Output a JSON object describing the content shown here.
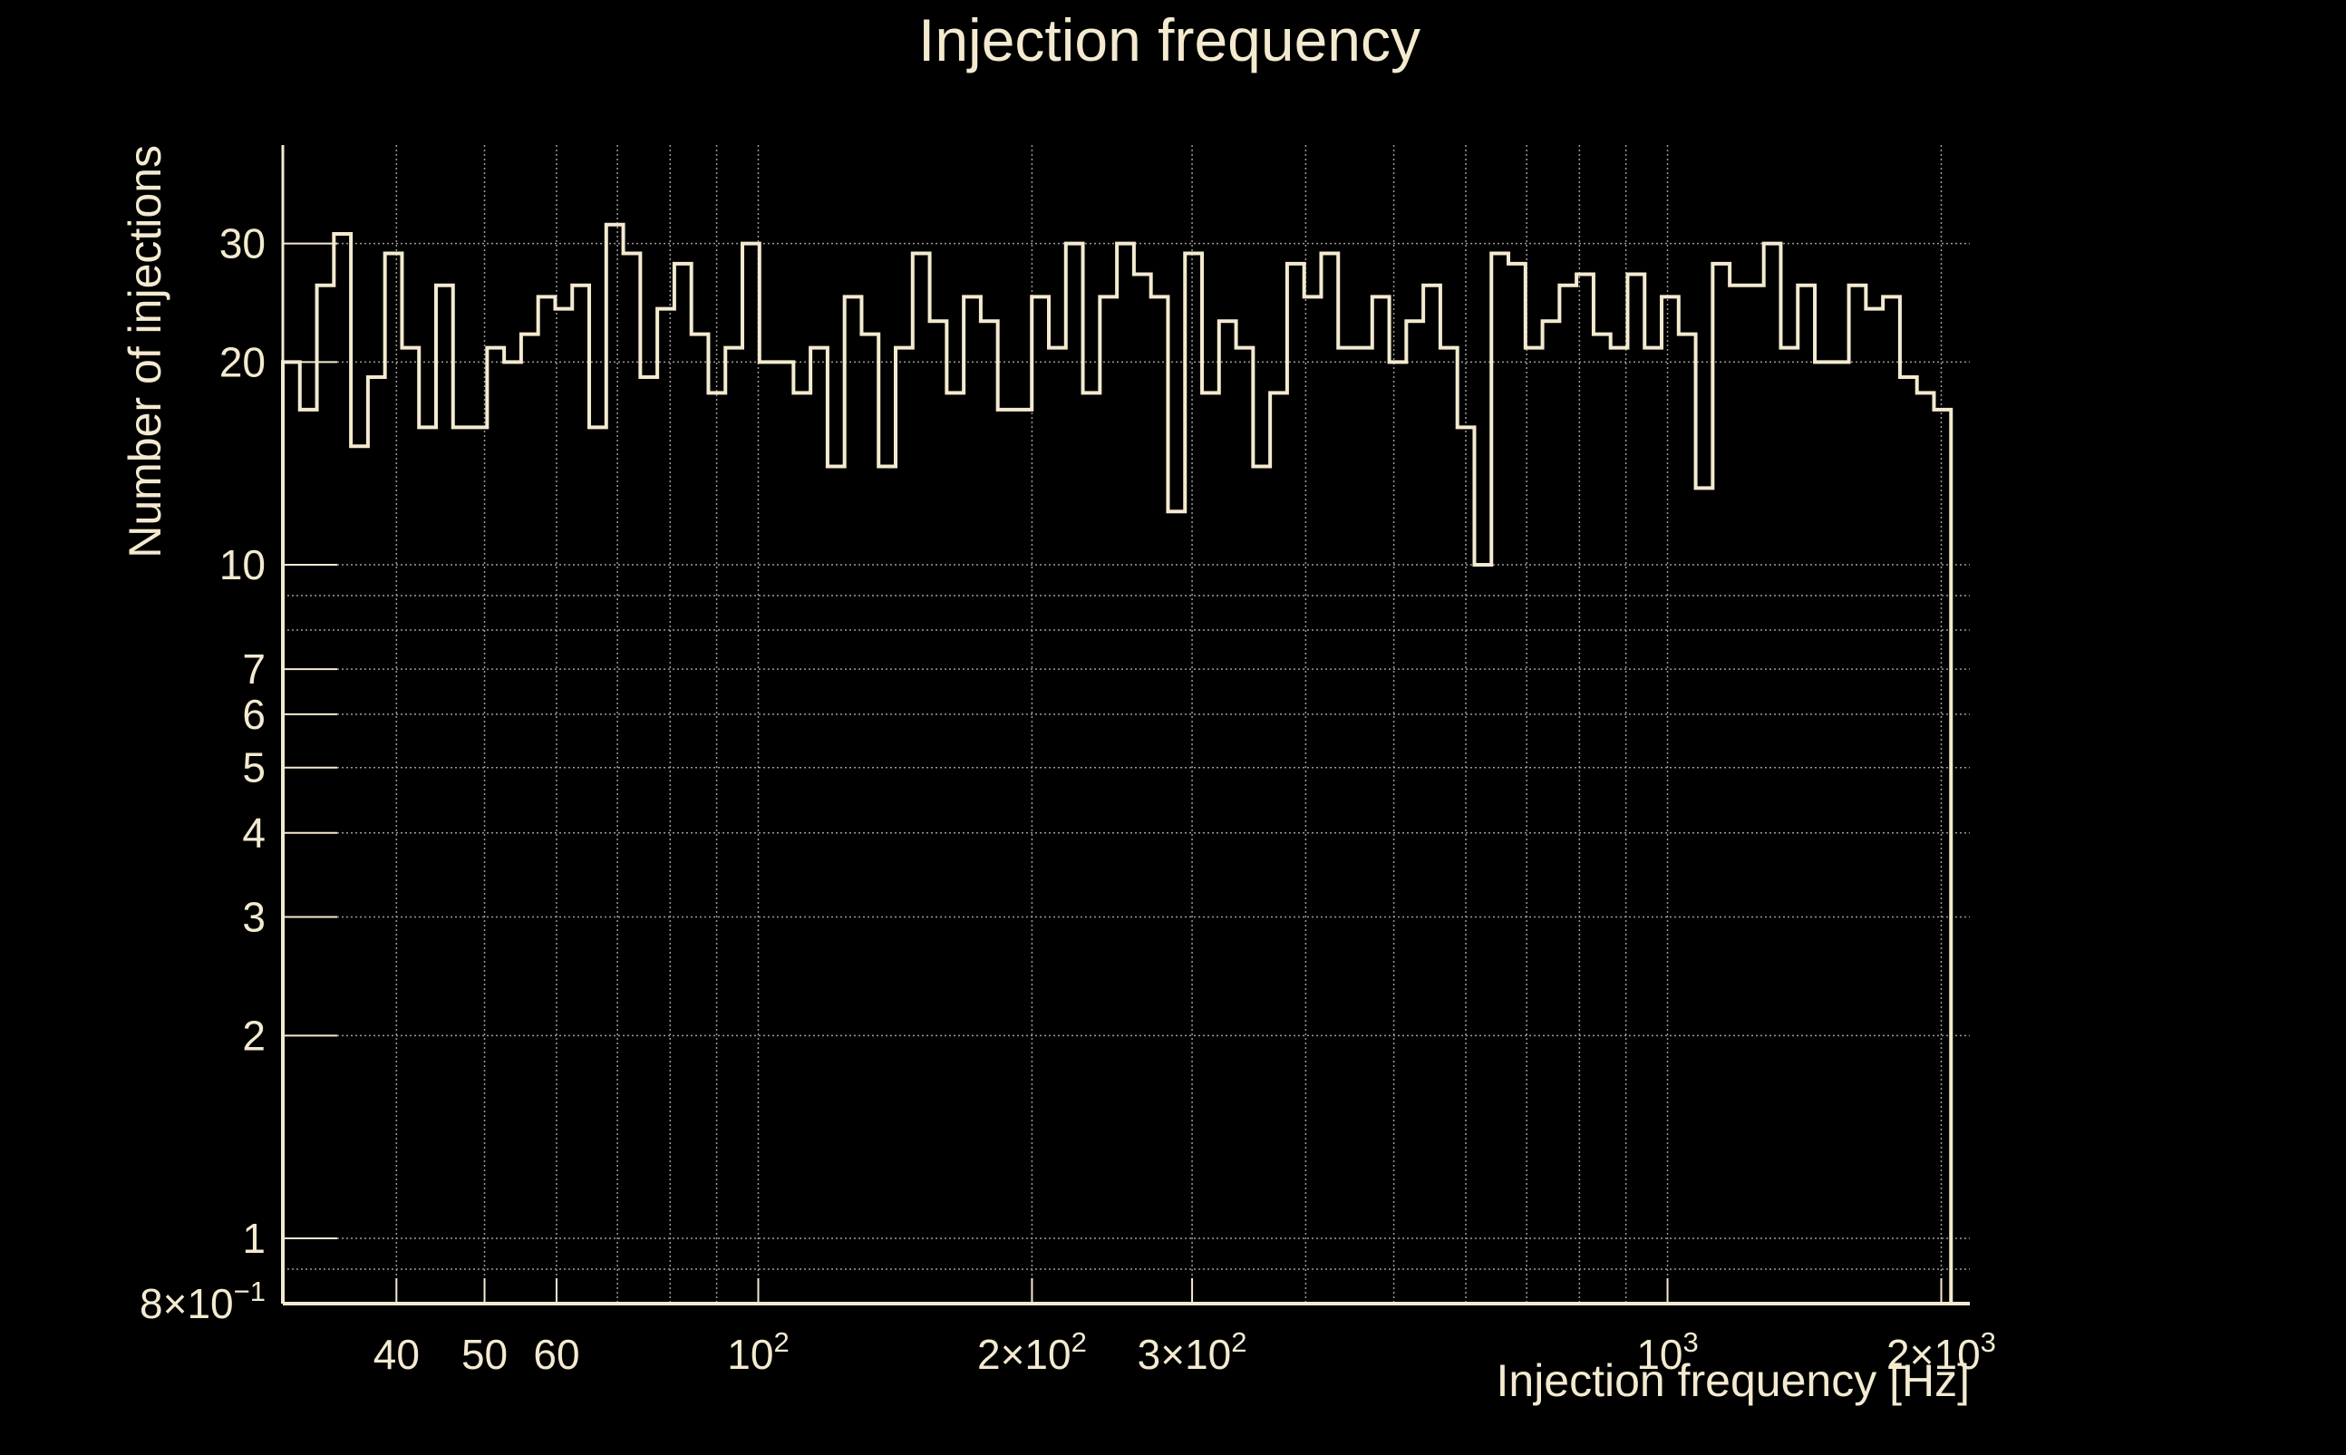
{
  "theme": {
    "background": "#000000",
    "foreground": "#f3ead0",
    "grid": "#9a9a9a"
  },
  "chart_data": {
    "type": "histogram",
    "title": "Injection frequency",
    "xlabel": "Injection frequency [Hz]",
    "ylabel": "Number of injections",
    "xscale": "log",
    "yscale": "log",
    "xlim": [
      30,
      2150
    ],
    "ylim": [
      0.8,
      42
    ],
    "grid": true,
    "legend": "none",
    "x_ticks": [
      {
        "value": 40,
        "base": "40",
        "exp": ""
      },
      {
        "value": 50,
        "base": "50",
        "exp": ""
      },
      {
        "value": 60,
        "base": "60",
        "exp": ""
      },
      {
        "value": 100,
        "base": "10",
        "exp": "2"
      },
      {
        "value": 200,
        "base": "2×10",
        "exp": "2"
      },
      {
        "value": 300,
        "base": "3×10",
        "exp": "2"
      },
      {
        "value": 1000,
        "base": "10",
        "exp": "3"
      },
      {
        "value": 2000,
        "base": "2×10",
        "exp": "3"
      }
    ],
    "x_minor_grid": [
      70,
      80,
      90,
      400,
      500,
      600,
      700,
      800,
      900
    ],
    "y_ticks": [
      {
        "value": 0.8,
        "base": "8×10",
        "exp": "−1"
      },
      {
        "value": 1,
        "base": "1",
        "exp": ""
      },
      {
        "value": 2,
        "base": "2",
        "exp": ""
      },
      {
        "value": 3,
        "base": "3",
        "exp": ""
      },
      {
        "value": 4,
        "base": "4",
        "exp": ""
      },
      {
        "value": 5,
        "base": "5",
        "exp": ""
      },
      {
        "value": 6,
        "base": "6",
        "exp": ""
      },
      {
        "value": 7,
        "base": "7",
        "exp": ""
      },
      {
        "value": 10,
        "base": "10",
        "exp": ""
      },
      {
        "value": 20,
        "base": "20",
        "exp": ""
      },
      {
        "value": 30,
        "base": "30",
        "exp": ""
      }
    ],
    "y_minor_grid": [
      0.9,
      8,
      9
    ],
    "bin_range": [
      30,
      2050
    ],
    "counts": [
      20,
      17,
      26,
      31,
      15,
      19,
      29,
      21,
      16,
      26,
      16,
      16,
      21,
      20,
      22,
      25,
      24,
      26,
      16,
      32,
      29,
      19,
      24,
      28,
      22,
      18,
      21,
      30,
      20,
      20,
      18,
      21,
      14,
      25,
      22,
      14,
      21,
      29,
      23,
      18,
      25,
      23,
      17,
      17,
      25,
      21,
      30,
      18,
      25,
      30,
      27,
      25,
      12,
      29,
      18,
      23,
      21,
      14,
      18,
      28,
      25,
      29,
      21,
      21,
      25,
      20,
      23,
      26,
      21,
      16,
      10,
      29,
      28,
      21,
      23,
      26,
      27,
      22,
      21,
      27,
      21,
      25,
      22,
      13,
      28,
      26,
      26,
      30,
      21,
      26,
      20,
      20,
      26,
      24,
      25,
      19,
      18,
      17
    ]
  }
}
